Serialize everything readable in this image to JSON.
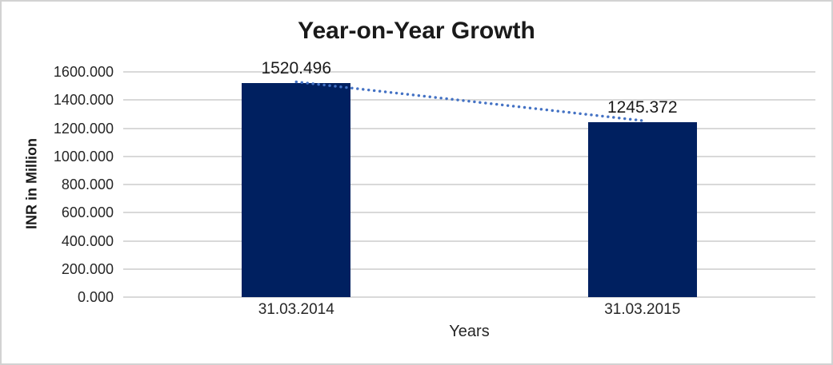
{
  "chart_data": {
    "type": "bar",
    "title": "Year-on-Year Growth",
    "xlabel": "Years",
    "ylabel": "INR in Million",
    "categories": [
      "31.03.2014",
      "31.03.2015"
    ],
    "values": [
      1520.496,
      1245.372
    ],
    "value_labels": [
      "1520.496",
      "1245.372"
    ],
    "ylim": [
      0,
      1600
    ],
    "ytick_step": 200,
    "ytick_labels": [
      "1600.000",
      "1400.000",
      "1200.000",
      "1000.000",
      "800.000",
      "600.000",
      "400.000",
      "200.000",
      "0.000"
    ],
    "grid": "horizontal",
    "legend": "none",
    "trendline": {
      "type": "linear",
      "style": "dotted",
      "color": "#4472C4"
    },
    "colors": {
      "bar": "#002060",
      "gridline": "#D9D9D9",
      "axis_text": "#262626",
      "title_text": "#1A1A1A",
      "frame_border": "#D2D2D2",
      "background": "#FFFFFF"
    }
  }
}
